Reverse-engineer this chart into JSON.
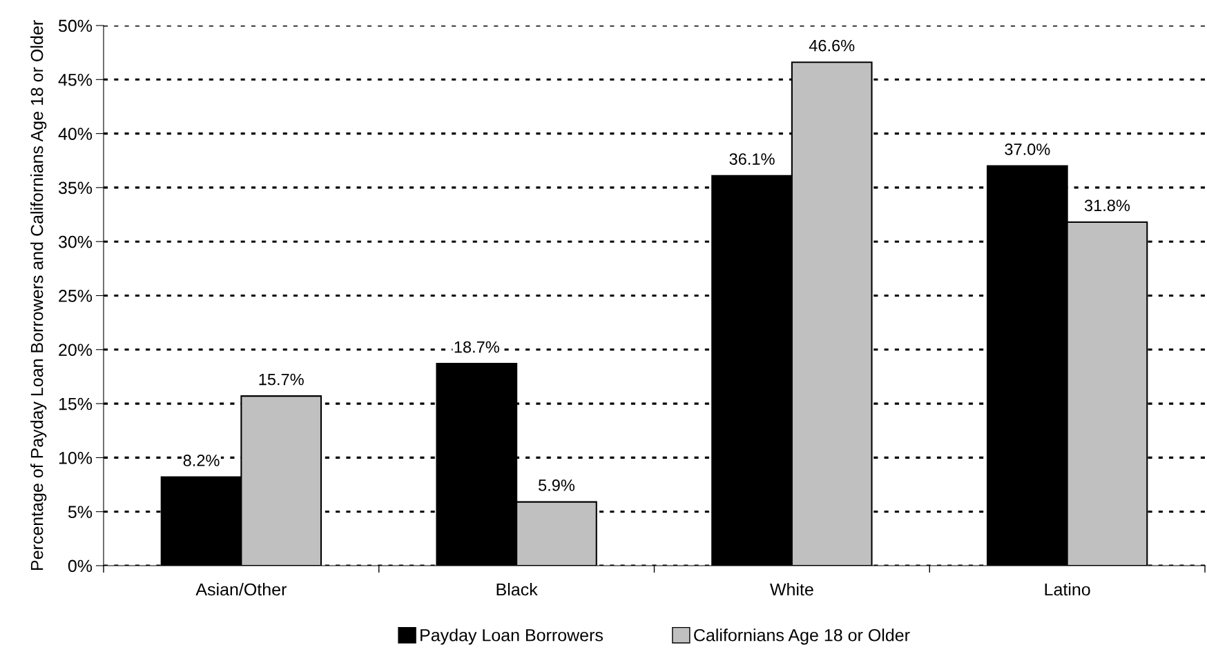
{
  "chart_data": {
    "type": "bar",
    "ylabel": "Percentage of Payday Loan Borrowers and Californians Age 18 or Older",
    "categories": [
      "Asian/Other",
      "Black",
      "White",
      "Latino"
    ],
    "series": [
      {
        "name": "Payday Loan Borrowers",
        "color": "#000000",
        "values": [
          8.2,
          18.7,
          36.1,
          37.0
        ],
        "value_labels": [
          "8.2%",
          "18.7%",
          "36.1%",
          "37.0%"
        ]
      },
      {
        "name": "Californians Age 18 or Older",
        "color": "#c0c0c0",
        "values": [
          15.7,
          5.9,
          46.6,
          31.8
        ],
        "value_labels": [
          "15.7%",
          "5.9%",
          "46.6%",
          "31.8%"
        ]
      }
    ],
    "ylim": [
      0,
      50
    ],
    "yticks": [
      {
        "value": 0,
        "label": "0%"
      },
      {
        "value": 5,
        "label": "5%"
      },
      {
        "value": 10,
        "label": "10%"
      },
      {
        "value": 15,
        "label": "15%"
      },
      {
        "value": 20,
        "label": "20%"
      },
      {
        "value": 25,
        "label": "25%"
      },
      {
        "value": 30,
        "label": "30%"
      },
      {
        "value": 35,
        "label": "35%"
      },
      {
        "value": 40,
        "label": "40%"
      },
      {
        "value": 45,
        "label": "45%"
      },
      {
        "value": 50,
        "label": "50%"
      }
    ],
    "grid": "y",
    "legend": "bottom"
  }
}
